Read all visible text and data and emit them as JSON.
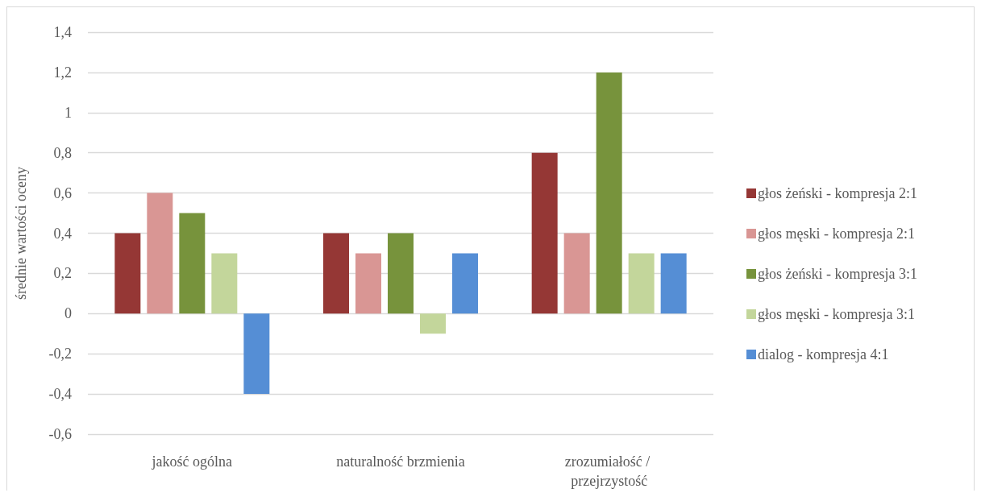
{
  "chart_data": {
    "type": "bar",
    "ylabel": "średnie wartości oceny",
    "categories": [
      "jakość ogólna",
      "naturalność brzmienia",
      "zrozumiałość / przejrzystość"
    ],
    "series": [
      {
        "name": "głos żeński - kompresja 2:1",
        "color": "#953735",
        "values": [
          0.4,
          0.4,
          0.8
        ]
      },
      {
        "name": "głos męski - kompresja 2:1",
        "color": "#d99694",
        "values": [
          0.6,
          0.3,
          0.4
        ]
      },
      {
        "name": "głos żeński - kompresja 3:1",
        "color": "#77933c",
        "values": [
          0.5,
          0.4,
          1.2
        ]
      },
      {
        "name": "głos męski - kompresja 3:1",
        "color": "#c3d69b",
        "values": [
          0.3,
          -0.1,
          0.3
        ]
      },
      {
        "name": "dialog - kompresja 4:1",
        "color": "#558ed5",
        "values": [
          -0.4,
          0.3,
          0.3
        ]
      }
    ],
    "ylim": [
      -0.6,
      1.4
    ],
    "yticks": [
      {
        "value": -0.6,
        "label": "-0,6"
      },
      {
        "value": -0.4,
        "label": "-0,4"
      },
      {
        "value": -0.2,
        "label": "-0,2"
      },
      0,
      {
        "value": 0.2,
        "label": "0,2"
      },
      {
        "value": 0.4,
        "label": "0,4"
      },
      {
        "value": 0.6,
        "label": "0,6"
      },
      {
        "value": 0.8,
        "label": "0,8"
      },
      1,
      {
        "value": 1.2,
        "label": "1,2"
      },
      {
        "value": 1.4,
        "label": "1,4"
      }
    ],
    "grid": "y",
    "legend": "right"
  }
}
